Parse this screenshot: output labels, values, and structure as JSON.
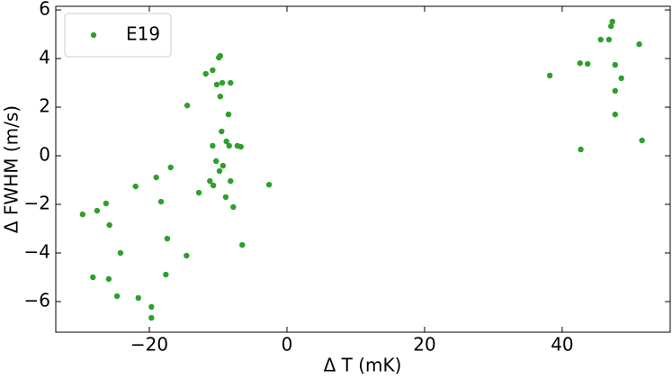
{
  "chart_data": {
    "type": "scatter",
    "xlabel": "Δ T (mK)",
    "ylabel": "Δ FWHM (m/s)",
    "xlim": [
      -33.6,
      55.7
    ],
    "ylim": [
      -7.26,
      6.15
    ],
    "xticks": [
      {
        "value": -20,
        "label": "−20"
      },
      0,
      20,
      40
    ],
    "yticks": [
      {
        "value": -6,
        "label": "−6"
      },
      {
        "value": -4,
        "label": "−4"
      },
      {
        "value": -2,
        "label": "−2"
      },
      0,
      2,
      4,
      6
    ],
    "legend": "upper left",
    "series": [
      {
        "name": "E19",
        "color": "#2ca02c",
        "x": [
          -29.7,
          -27.6,
          -26.3,
          -25.8,
          -28.2,
          -25.9,
          -24.7,
          -24.2,
          -22.0,
          -21.6,
          -19.7,
          -19.7,
          -19.0,
          -18.3,
          -17.6,
          -17.4,
          -16.9,
          -14.6,
          -14.5,
          -12.8,
          -11.8,
          -11.2,
          -10.8,
          -10.8,
          -10.7,
          -10.3,
          -10.2,
          -9.9,
          -9.7,
          -9.8,
          -9.7,
          -9.5,
          -9.4,
          -9.3,
          -8.9,
          -8.8,
          -8.5,
          -8.4,
          -8.2,
          -8.2,
          -7.8,
          -7.2,
          -6.7,
          -6.5,
          -2.6,
          38.2,
          42.6,
          42.7,
          43.7,
          45.6,
          46.8,
          47.1,
          47.3,
          47.7,
          47.7,
          47.7,
          48.6,
          51.2,
          51.6
        ],
        "values": [
          -2.41,
          -2.26,
          -1.96,
          -2.85,
          -5.0,
          -5.07,
          -5.78,
          -4.0,
          -1.26,
          -5.85,
          -6.22,
          -6.67,
          -0.89,
          -1.89,
          -4.89,
          -3.41,
          -0.48,
          -4.11,
          2.07,
          -1.52,
          3.37,
          -1.04,
          3.52,
          0.41,
          -1.22,
          -0.22,
          2.93,
          4.04,
          4.11,
          -0.63,
          2.44,
          1.0,
          3.0,
          -0.41,
          -1.7,
          0.59,
          1.7,
          0.41,
          3.0,
          -1.04,
          -2.11,
          0.41,
          0.37,
          -3.67,
          -1.19,
          3.3,
          3.81,
          0.26,
          3.78,
          4.78,
          4.78,
          5.33,
          5.52,
          3.74,
          2.67,
          1.7,
          3.19,
          4.59,
          0.63
        ]
      }
    ]
  }
}
